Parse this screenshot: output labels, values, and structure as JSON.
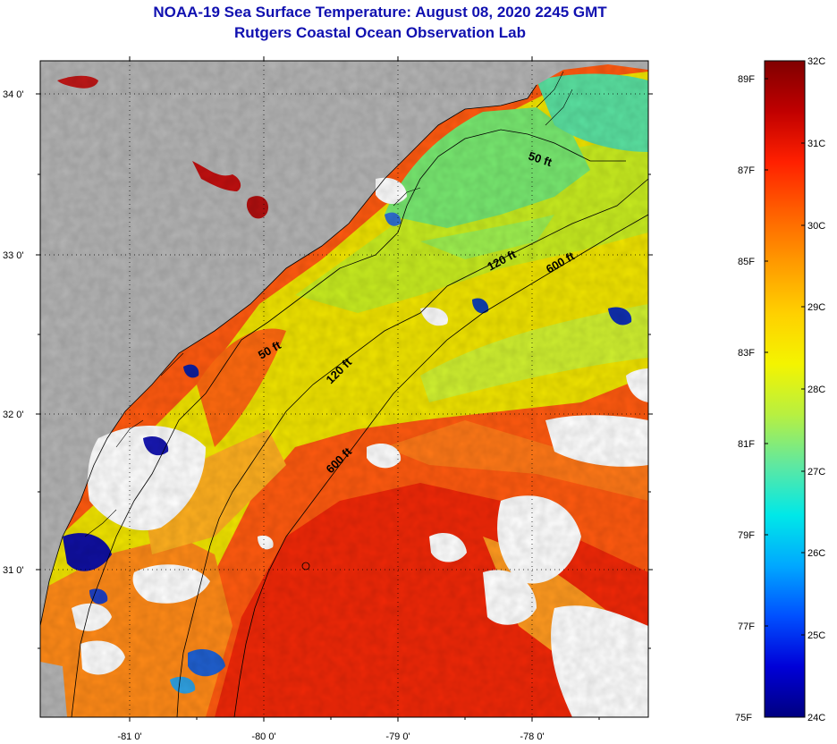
{
  "title": {
    "line1": "NOAA-19 Sea Surface Temperature:  August 08, 2020 2245 GMT",
    "line2": "Rutgers Coastal Ocean Observation Lab"
  },
  "map": {
    "longitude_labels": [
      "-81 0'",
      "-80 0'",
      "-79 0'",
      "-78 0'"
    ],
    "latitude_labels": [
      "34 0'",
      "33 0'",
      "32 0'",
      "31 0'"
    ],
    "isobath_labels": [
      {
        "id": "50ft-north",
        "text": "50 ft"
      },
      {
        "id": "120ft-north",
        "text": "120 ft"
      },
      {
        "id": "600ft-north",
        "text": "600 ft"
      },
      {
        "id": "50ft-south",
        "text": "50 ft"
      },
      {
        "id": "120ft-south",
        "text": "120 ft"
      },
      {
        "id": "600ft-south",
        "text": "600 ft"
      }
    ],
    "colors": {
      "land": "#b4b4b4",
      "cloud": "#ffffff",
      "coastline": "#000000"
    }
  },
  "colorbar": {
    "fahrenheit_labels": [
      "89F",
      "87F",
      "85F",
      "83F",
      "81F",
      "79F",
      "77F",
      "75F"
    ],
    "celsius_labels": [
      "32C",
      "31C",
      "30C",
      "29C",
      "28C",
      "27C",
      "26C",
      "25C",
      "24C"
    ],
    "stops": [
      "#800000",
      "#c00000",
      "#ff2000",
      "#ff6000",
      "#ff9a00",
      "#ffd000",
      "#f4f400",
      "#b8f040",
      "#60e8a0",
      "#00e8e8",
      "#00a8ff",
      "#0050ff",
      "#0000d8",
      "#000080"
    ]
  }
}
